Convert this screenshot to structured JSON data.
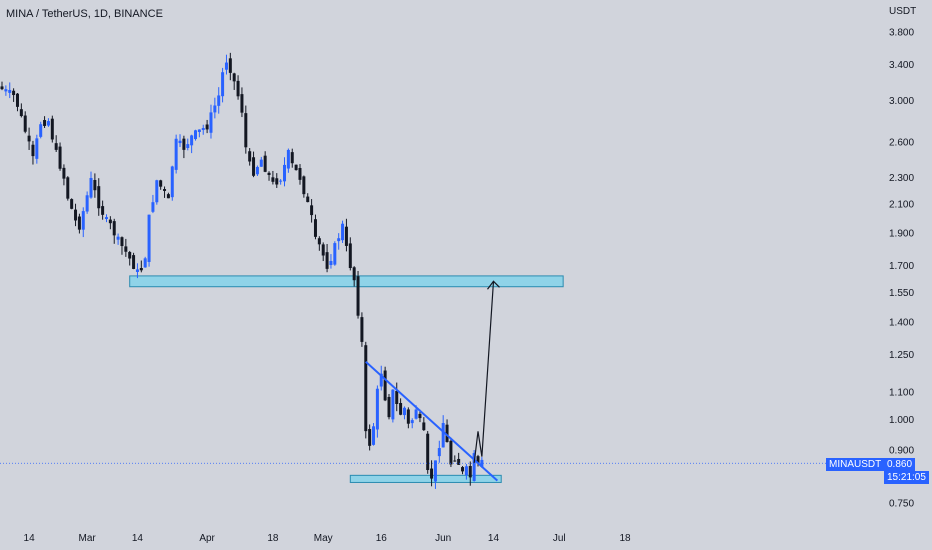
{
  "header": {
    "title": "MINA / TetherUS, 1D, BINANCE"
  },
  "price_axis": {
    "unit": "USDT"
  },
  "last_price": {
    "symbol": "MINAUSDT",
    "value": "0.860",
    "countdown": "15:21:05"
  },
  "colors": {
    "background": "#d1d4dc",
    "up": "#2962ff",
    "down": "#131722",
    "zone_fill": "#8fd3e8",
    "zone_stroke": "#2a8bb0",
    "trendline": "#2962ff",
    "badge": "#2962ff"
  },
  "chart_data": {
    "type": "candlestick",
    "title": "MINA / TetherUS, 1D, BINANCE",
    "y_unit": "USDT",
    "y_scale": "log",
    "ylim": [
      0.7,
      4.2
    ],
    "y_ticks": [
      3.8,
      3.4,
      3.0,
      2.6,
      2.3,
      2.1,
      1.9,
      1.7,
      1.55,
      1.4,
      1.25,
      1.1,
      1.0,
      0.9,
      0.75
    ],
    "y_tick_labels": [
      "3.800",
      "3.400",
      "3.000",
      "2.600",
      "2.300",
      "2.100",
      "1.900",
      "1.700",
      "1.550",
      "1.400",
      "1.250",
      "1.100",
      "1.000",
      "0.900",
      "0.750"
    ],
    "x_start": "2022-02-07",
    "x_tick_labels": [
      {
        "label": "14",
        "date": "2022-02-14"
      },
      {
        "label": "Mar",
        "date": "2022-03-01"
      },
      {
        "label": "14",
        "date": "2022-03-14"
      },
      {
        "label": "Apr",
        "date": "2022-04-01"
      },
      {
        "label": "18",
        "date": "2022-04-18"
      },
      {
        "label": "May",
        "date": "2022-05-01"
      },
      {
        "label": "16",
        "date": "2022-05-16"
      },
      {
        "label": "Jun",
        "date": "2022-06-01"
      },
      {
        "label": "14",
        "date": "2022-06-14"
      },
      {
        "label": "Jul",
        "date": "2022-07-01"
      },
      {
        "label": "18",
        "date": "2022-07-18"
      }
    ],
    "close_path": [
      [
        0,
        3.12
      ],
      [
        3,
        3.05
      ],
      [
        4,
        2.95
      ],
      [
        6,
        2.7
      ],
      [
        8,
        2.45
      ],
      [
        10,
        2.78
      ],
      [
        12,
        2.8
      ],
      [
        14,
        2.5
      ],
      [
        15,
        2.4
      ],
      [
        16,
        2.3
      ],
      [
        17,
        2.15
      ],
      [
        19,
        1.98
      ],
      [
        20,
        1.95
      ],
      [
        21,
        2.05
      ],
      [
        23,
        2.28
      ],
      [
        25,
        2.1
      ],
      [
        27,
        1.98
      ],
      [
        28,
        1.95
      ],
      [
        30,
        1.85
      ],
      [
        32,
        1.78
      ],
      [
        34,
        1.7
      ],
      [
        35,
        1.66
      ],
      [
        36,
        1.68
      ],
      [
        37,
        1.76
      ],
      [
        38,
        2.0
      ],
      [
        40,
        2.28
      ],
      [
        42,
        2.18
      ],
      [
        43,
        2.12
      ],
      [
        44,
        2.4
      ],
      [
        45,
        2.6
      ],
      [
        47,
        2.55
      ],
      [
        49,
        2.65
      ],
      [
        51,
        2.7
      ],
      [
        53,
        2.75
      ],
      [
        55,
        2.95
      ],
      [
        56,
        3.05
      ],
      [
        57,
        3.3
      ],
      [
        58,
        3.45
      ],
      [
        59,
        3.35
      ],
      [
        60,
        3.2
      ],
      [
        61,
        3.05
      ],
      [
        62,
        2.9
      ],
      [
        63,
        2.55
      ],
      [
        64,
        2.4
      ],
      [
        65,
        2.35
      ],
      [
        67,
        2.45
      ],
      [
        68,
        2.38
      ],
      [
        70,
        2.25
      ],
      [
        72,
        2.3
      ],
      [
        74,
        2.5
      ],
      [
        75,
        2.4
      ],
      [
        77,
        2.3
      ],
      [
        78,
        2.2
      ],
      [
        80,
        2.0
      ],
      [
        81,
        1.85
      ],
      [
        82,
        1.82
      ],
      [
        84,
        1.7
      ],
      [
        85,
        1.75
      ],
      [
        87,
        1.88
      ],
      [
        88,
        1.95
      ],
      [
        89,
        1.8
      ],
      [
        90,
        1.7
      ],
      [
        91,
        1.62
      ],
      [
        92,
        1.45
      ],
      [
        93,
        1.3
      ],
      [
        94,
        0.95
      ],
      [
        95,
        0.92
      ],
      [
        96,
        0.98
      ],
      [
        97,
        1.1
      ],
      [
        98,
        1.18
      ],
      [
        99,
        1.08
      ],
      [
        100,
        1.02
      ],
      [
        101,
        1.1
      ],
      [
        102,
        1.05
      ],
      [
        103,
        1.02
      ],
      [
        104,
        1.04
      ],
      [
        105,
        0.98
      ],
      [
        106,
        1.0
      ],
      [
        107,
        1.04
      ],
      [
        108,
        0.99
      ],
      [
        109,
        0.95
      ],
      [
        110,
        0.83
      ],
      [
        111,
        0.82
      ],
      [
        112,
        0.86
      ],
      [
        113,
        0.92
      ],
      [
        114,
        0.99
      ],
      [
        115,
        0.92
      ],
      [
        116,
        0.86
      ],
      [
        117,
        0.88
      ],
      [
        118,
        0.86
      ],
      [
        119,
        0.83
      ],
      [
        120,
        0.84
      ],
      [
        121,
        0.82
      ],
      [
        122,
        0.88
      ],
      [
        123,
        0.85
      ],
      [
        124,
        0.86
      ]
    ],
    "annotations": [
      {
        "type": "horizontal_zone",
        "from": "2022-03-12",
        "to": "2022-07-02",
        "low": 1.58,
        "high": 1.64
      },
      {
        "type": "horizontal_zone",
        "from": "2022-05-08",
        "to": "2022-06-16",
        "low": 0.805,
        "high": 0.825
      },
      {
        "type": "trendline",
        "from": {
          "date": "2022-05-12",
          "price": 1.22
        },
        "to": {
          "date": "2022-06-15",
          "price": 0.81
        }
      },
      {
        "type": "projection_arrow",
        "points": [
          {
            "date": "2022-06-09",
            "price": 0.86
          },
          {
            "date": "2022-06-10",
            "price": 0.96
          },
          {
            "date": "2022-06-11",
            "price": 0.88
          },
          {
            "date": "2022-06-14",
            "price": 1.61
          }
        ]
      }
    ]
  }
}
